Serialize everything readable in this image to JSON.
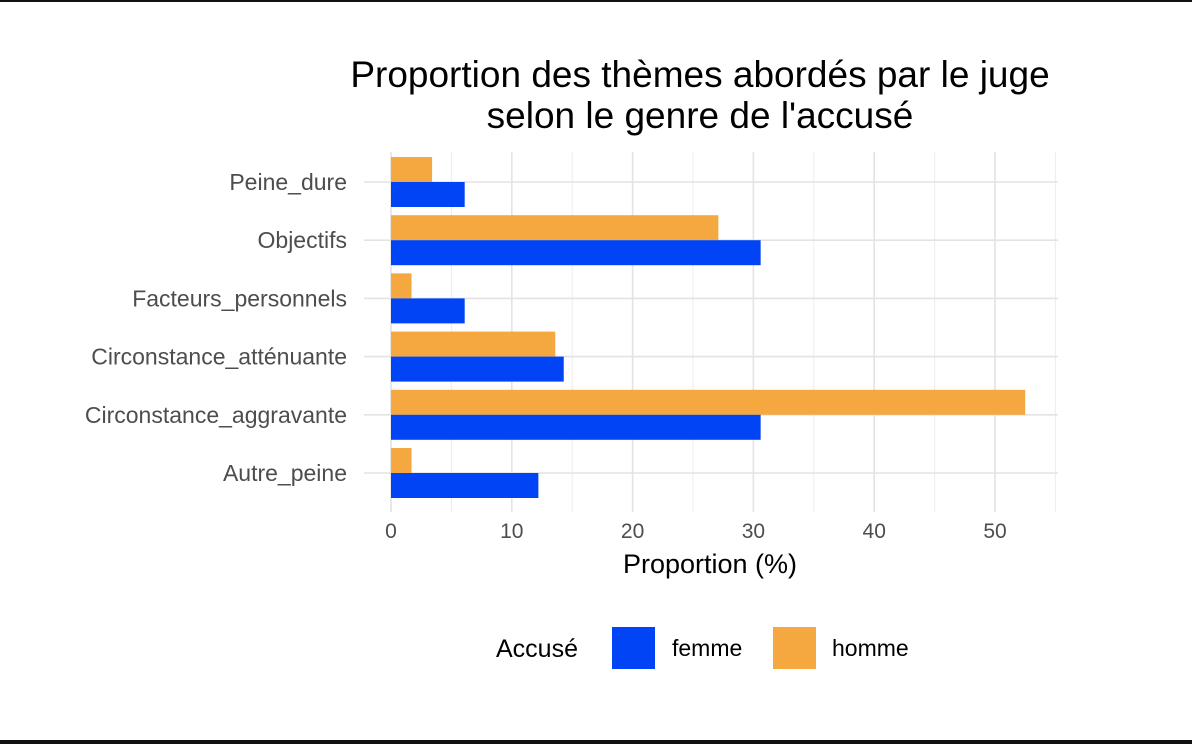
{
  "chart_data": {
    "type": "bar",
    "orientation": "horizontal",
    "title": "Proportion des thèmes abordés par le juge\nselon le genre de l'accusé",
    "xlabel": "Proportion (%)",
    "ylabel": "",
    "categories": [
      "Peine_dure",
      "Objectifs",
      "Facteurs_personnels",
      "Circonstance_atténuante",
      "Circonstance_aggravante",
      "Autre_peine"
    ],
    "series": [
      {
        "name": "femme",
        "color": "#0044f5",
        "values": [
          6.1,
          30.6,
          6.1,
          14.3,
          30.6,
          12.2
        ]
      },
      {
        "name": "homme",
        "color": "#f4a83f",
        "values": [
          3.4,
          27.1,
          1.7,
          13.6,
          52.5,
          1.7
        ]
      }
    ],
    "xlim": [
      0,
      55
    ],
    "xticks": [
      0,
      10,
      20,
      30,
      40,
      50
    ],
    "grid": true,
    "legend": {
      "title": "Accusé",
      "position": "bottom"
    }
  }
}
